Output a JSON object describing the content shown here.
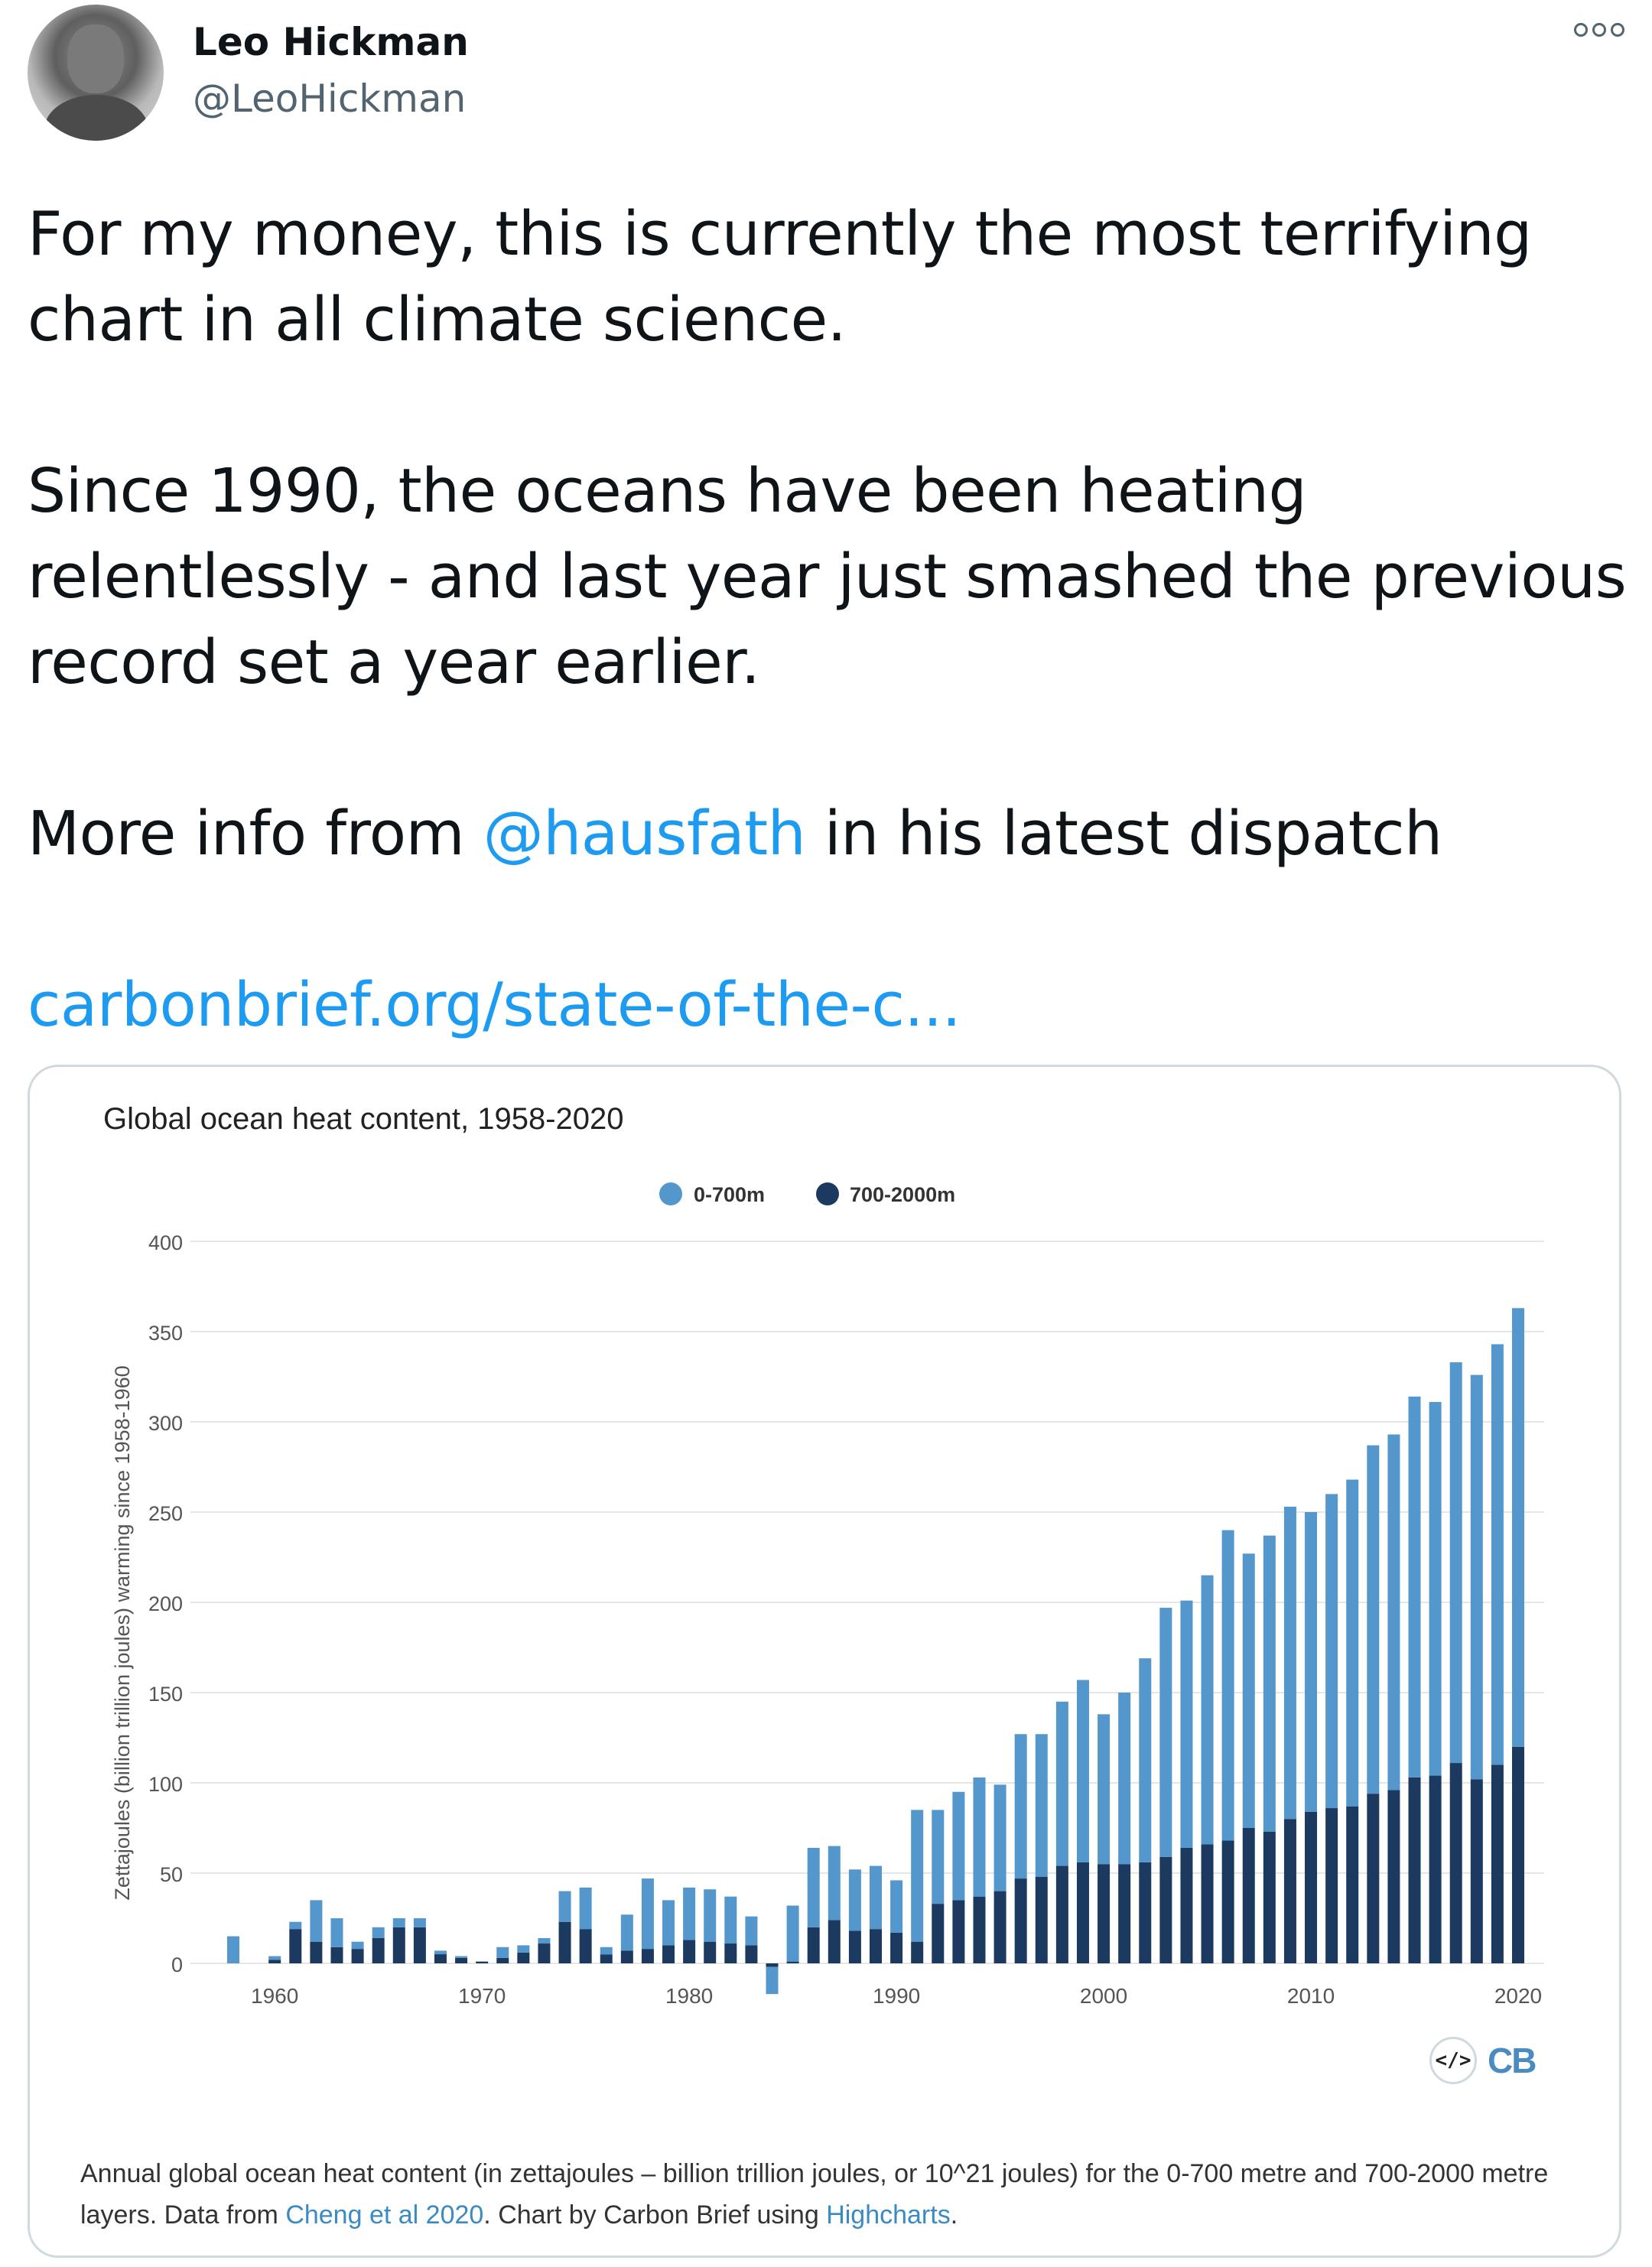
{
  "tweet": {
    "author_name": "Leo Hickman",
    "author_handle": "@LeoHickman",
    "more_icon": "more-horizontal-icon",
    "text_p1": "For my money, this is currently the most terrifying chart in all climate science.",
    "text_p2": "Since 1990, the oceans have been heating relentlessly - and last year just smashed the previous record set a year earlier.",
    "text_p3_before": "More info from ",
    "text_p3_mention": "@hausfath",
    "text_p3_after": " in his latest dispatch",
    "link_text": "carbonbrief.org/state-of-the-c..."
  },
  "card": {
    "title": "Global ocean heat content, 1958-2020",
    "embed_icon": "</>",
    "logo_text": "CB",
    "caption_before": "Annual global ocean heat content (in zettajoules – billion trillion joules, or 10^21 joules) for the 0-700 metre and 700-2000 metre layers. Data from ",
    "caption_link1": "Cheng et al 2020",
    "caption_mid": ". Chart by Carbon Brief using ",
    "caption_link2": "Highcharts",
    "caption_after": "."
  },
  "colors": {
    "series_0_700": "#5497cd",
    "series_700_2000": "#1c3a5f",
    "link": "#1d9bf0"
  },
  "chart_data": {
    "type": "bar",
    "stacked": true,
    "title": "Global ocean heat content, 1958-2020",
    "xlabel": "",
    "ylabel": "Zettajoules (billion trillion joules) warming since 1958-1960",
    "ylim": [
      0,
      400
    ],
    "yticks": [
      "0",
      "50",
      "100",
      "150",
      "200",
      "250",
      "300",
      "350",
      "400"
    ],
    "xticks": [
      "1960",
      "1970",
      "1980",
      "1990",
      "2000",
      "2010",
      "2020"
    ],
    "grid": true,
    "legend_position": "top-center",
    "x": [
      1958,
      1959,
      1960,
      1961,
      1962,
      1963,
      1964,
      1965,
      1966,
      1967,
      1968,
      1969,
      1970,
      1971,
      1972,
      1973,
      1974,
      1975,
      1976,
      1977,
      1978,
      1979,
      1980,
      1981,
      1982,
      1983,
      1984,
      1985,
      1986,
      1987,
      1988,
      1989,
      1990,
      1991,
      1992,
      1993,
      1994,
      1995,
      1996,
      1997,
      1998,
      1999,
      2000,
      2001,
      2002,
      2003,
      2004,
      2005,
      2006,
      2007,
      2008,
      2009,
      2010,
      2011,
      2012,
      2013,
      2014,
      2015,
      2016,
      2017,
      2018,
      2019,
      2020
    ],
    "series": [
      {
        "name": "0-700m",
        "values": [
          15,
          0,
          2,
          4,
          23,
          16,
          4,
          6,
          5,
          5,
          -2,
          1,
          0,
          6,
          4,
          3,
          17,
          23,
          4,
          20,
          39,
          25,
          29,
          29,
          26,
          16,
          -15,
          31,
          44,
          41,
          34,
          35,
          29,
          73,
          52,
          60,
          66,
          59,
          80,
          79,
          91,
          101,
          83,
          95,
          113,
          138,
          137,
          149,
          172,
          152,
          164,
          173,
          166,
          174,
          181,
          193,
          197,
          211,
          207,
          222,
          224,
          233,
          243
        ]
      },
      {
        "name": "700-2000m",
        "values": [
          0,
          0,
          2,
          19,
          12,
          9,
          8,
          14,
          20,
          20,
          7,
          3,
          1,
          3,
          6,
          11,
          23,
          19,
          5,
          7,
          8,
          10,
          13,
          12,
          11,
          10,
          -2,
          1,
          20,
          24,
          18,
          19,
          17,
          12,
          33,
          35,
          37,
          40,
          47,
          48,
          54,
          56,
          55,
          55,
          56,
          59,
          64,
          66,
          68,
          75,
          73,
          80,
          84,
          86,
          87,
          94,
          96,
          103,
          104,
          111,
          102,
          110,
          120
        ]
      }
    ]
  }
}
